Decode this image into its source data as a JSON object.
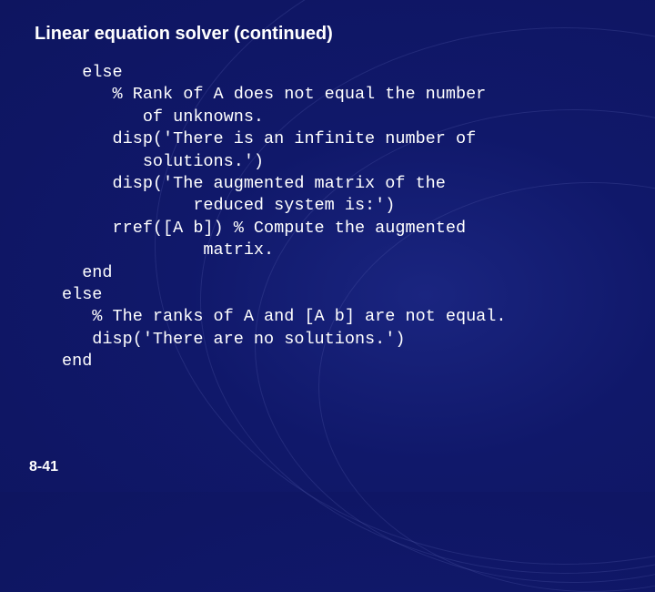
{
  "slide": {
    "title": "Linear equation solver  (continued)",
    "page_number": "8-41",
    "background_color": "#10186a",
    "text_color": "#ffffff",
    "title_font_family": "Arial",
    "title_font_size_pt": 20,
    "title_font_weight": "bold",
    "code_font_family": "Courier New",
    "code_font_size_pt": 18,
    "code_lines": [
      "  else",
      "     % Rank of A does not equal the number",
      "        of unknowns.",
      "     disp('There is an infinite number of",
      "        solutions.')",
      "     disp('The augmented matrix of the",
      "             reduced system is:')",
      "     rref([A b]) % Compute the augmented",
      "              matrix.",
      "  end",
      "else",
      "   % The ranks of A and [A b] are not equal.",
      "   disp('There are no solutions.')",
      "end"
    ]
  }
}
